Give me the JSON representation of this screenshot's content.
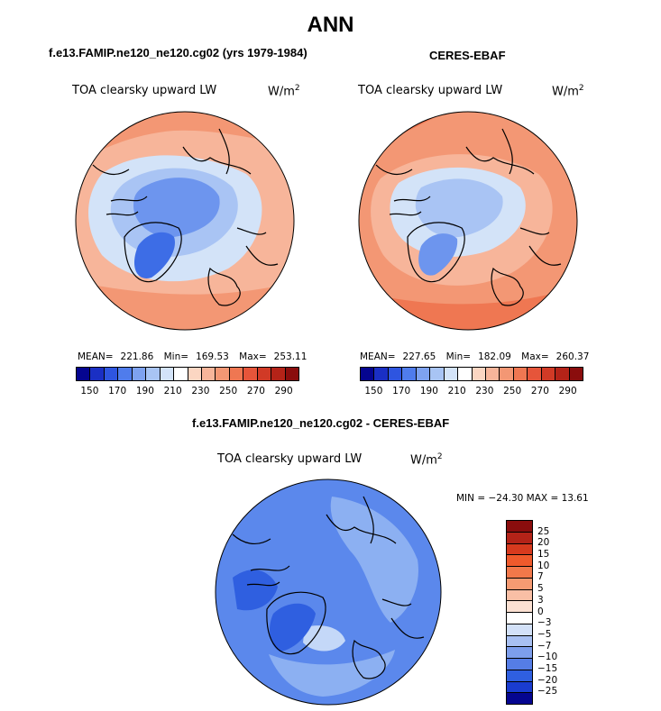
{
  "title": "ANN",
  "panels": {
    "model": {
      "title": "f.e13.FAMIP.ne120_ne120.cg02 (yrs 1979-1984)",
      "variable": "TOA clearsky upward LW",
      "units_base": "W/m",
      "units_exp": "2",
      "mean_label": "MEAN=",
      "mean": "221.86",
      "min_label": "Min=",
      "min": "169.53",
      "max_label": "Max=",
      "max": "253.11"
    },
    "obs": {
      "title": "CERES-EBAF",
      "variable": "TOA clearsky upward LW",
      "units_base": "W/m",
      "units_exp": "2",
      "mean_label": "MEAN=",
      "mean": "227.65",
      "min_label": "Min=",
      "min": "182.09",
      "max_label": "Max=",
      "max": "260.37"
    },
    "diff": {
      "title": "f.e13.FAMIP.ne120_ne120.cg02 - CERES-EBAF",
      "variable": "TOA clearsky upward LW",
      "units_base": "W/m",
      "units_exp": "2",
      "minmax": "MIN = −24.30 MAX =  13.61"
    }
  },
  "colorbars": {
    "abs": {
      "colors": [
        "#050590",
        "#1a2fc4",
        "#2e55e0",
        "#4f7cec",
        "#7ea2f0",
        "#a8c4f4",
        "#d3e3f8",
        "#ffffff",
        "#fbd6c2",
        "#f7b59a",
        "#f39774",
        "#ef7752",
        "#e6553a",
        "#d13a26",
        "#b42318",
        "#8a0d0d"
      ],
      "ticks": [
        "150",
        "170",
        "190",
        "210",
        "230",
        "250",
        "270",
        "290"
      ]
    },
    "diff": {
      "colors": [
        "#8a0d0d",
        "#b42318",
        "#d73a1e",
        "#ef5a2c",
        "#f2784a",
        "#f59a72",
        "#f9bfa5",
        "#fbe0d2",
        "#ffffff",
        "#d3e1f8",
        "#a8c0f2",
        "#7d9eec",
        "#557de6",
        "#2f5fe0",
        "#1a3cd0",
        "#050590"
      ],
      "ticks": [
        "25",
        "20",
        "15",
        "10",
        "7",
        "5",
        "3",
        "0",
        "−3",
        "−5",
        "−7",
        "−10",
        "−15",
        "−20",
        "−25"
      ]
    }
  },
  "map_colors": {
    "cold": "#3d6de6",
    "blue": "#6d95ee",
    "pale_blue": "#a9c4f4",
    "very_pale": "#d3e3f8",
    "light_orange": "#f7b59a",
    "orange": "#f39774",
    "dark_orange": "#ef7752",
    "diff_base": "#5b88ec",
    "diff_light": "#8cb0f2",
    "diff_dark": "#2f5fe0",
    "diff_pale": "#c4d8f8"
  }
}
